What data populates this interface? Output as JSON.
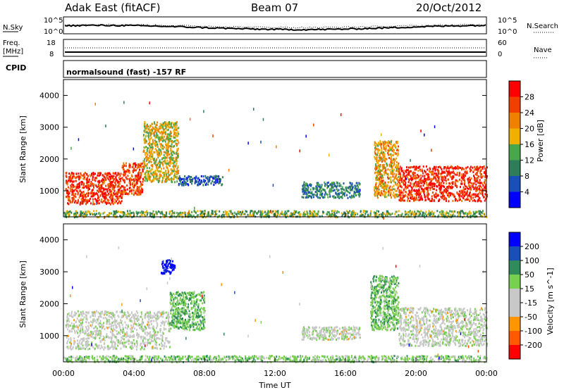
{
  "header": {
    "station": "Adak East (fitACF)",
    "beam": "Beam 07",
    "date": "20/Oct/2012"
  },
  "noise_panel": {
    "left_label": "N.Sky",
    "right_label": "N.Search",
    "left_ticks": [
      "10^5",
      "10^0"
    ],
    "right_ticks": [
      "10^5",
      "10^0"
    ]
  },
  "freq_panel": {
    "left_label_1": "Freq.",
    "left_label_2": "[MHz]",
    "right_label": "Nave",
    "left_ticks": [
      "18",
      "8"
    ],
    "right_ticks": [
      "60",
      "0"
    ]
  },
  "cpid_panel": {
    "label": "CPID",
    "text": "normalsound (fast) -157 RF"
  },
  "x_axis": {
    "label": "Time UT",
    "ticks": [
      "00:00",
      "04:00",
      "08:00",
      "12:00",
      "16:00",
      "20:00",
      "00:00"
    ]
  },
  "colors": {
    "power": [
      "#0000ff",
      "#1a4fb8",
      "#2f7c5a",
      "#4aa64a",
      "#f0b000",
      "#f08000",
      "#f04000",
      "#ff0000"
    ],
    "velocity": [
      "#ff0000",
      "#ff5a00",
      "#ff9600",
      "#c8c8c8",
      "#c8c8c8",
      "#78d050",
      "#2f8c5a",
      "#1a4fb8",
      "#0000ff"
    ]
  },
  "chart_data": [
    {
      "type": "heatmap",
      "title": "",
      "xlabel": "Time UT",
      "ylabel": "Slant Range [km]",
      "xlim": [
        0,
        24
      ],
      "ylim": [
        180,
        4500
      ],
      "yticks": [
        1000,
        2000,
        3000,
        4000
      ],
      "colorbar": {
        "label": "Power [dB]",
        "ticks": [
          "4",
          "8",
          "12",
          "16",
          "20",
          "24",
          "28"
        ]
      },
      "description_regions": [
        {
          "time": [
            0.1,
            3.3
          ],
          "range": [
            600,
            1600
          ],
          "value_db": 28
        },
        {
          "time": [
            3.3,
            4.5
          ],
          "range": [
            900,
            1900
          ],
          "value_db": 26
        },
        {
          "time": [
            4.5,
            6.5
          ],
          "range": [
            1300,
            3200
          ],
          "value_db": 18
        },
        {
          "time": [
            6.5,
            9.0
          ],
          "range": [
            1200,
            1500
          ],
          "value_db": 6
        },
        {
          "time": [
            13.5,
            16.8
          ],
          "range": [
            800,
            1300
          ],
          "value_db": 10
        },
        {
          "time": [
            17.6,
            19.0
          ],
          "range": [
            800,
            2600
          ],
          "value_db": 20
        },
        {
          "time": [
            19.0,
            24.0
          ],
          "range": [
            700,
            1800
          ],
          "value_db": 28
        },
        {
          "time": [
            0.0,
            24.0
          ],
          "range": [
            200,
            400
          ],
          "value_db": 14
        }
      ]
    },
    {
      "type": "heatmap",
      "title": "",
      "xlabel": "Time UT",
      "ylabel": "Slant Range [km]",
      "xlim": [
        0,
        24
      ],
      "ylim": [
        180,
        4500
      ],
      "yticks": [
        1000,
        2000,
        3000,
        4000
      ],
      "colorbar": {
        "label": "Velocity [m s^-1]",
        "ticks": [
          "-200",
          "-100",
          "-50",
          "-15",
          "15",
          "50",
          "100",
          "200"
        ]
      },
      "description_regions": [
        {
          "time": [
            0.1,
            6.0
          ],
          "range": [
            600,
            1800
          ],
          "value_ms": 0
        },
        {
          "time": [
            5.5,
            6.3
          ],
          "range": [
            2950,
            3400
          ],
          "value_ms": 220
        },
        {
          "time": [
            6.0,
            8.0
          ],
          "range": [
            1200,
            2400
          ],
          "value_ms": 40
        },
        {
          "time": [
            13.5,
            16.8
          ],
          "range": [
            900,
            1300
          ],
          "value_ms": 0
        },
        {
          "time": [
            17.4,
            19.0
          ],
          "range": [
            1200,
            2900
          ],
          "value_ms": 40
        },
        {
          "time": [
            19.0,
            24.0
          ],
          "range": [
            700,
            1900
          ],
          "value_ms": 0
        },
        {
          "time": [
            0.0,
            24.0
          ],
          "range": [
            200,
            400
          ],
          "value_ms": 30
        }
      ]
    }
  ]
}
